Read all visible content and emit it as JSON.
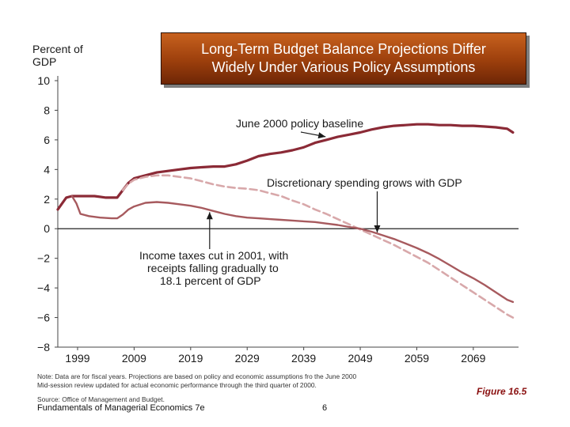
{
  "title_lines": [
    "Long-Term Budget Balance Projections Differ",
    "Widely Under Various Policy Assumptions"
  ],
  "note_lines": [
    "Note: Data are for fiscal years. Projections are based on policy and economic assumptions fro the June 2000",
    "Mid-session review updated for actual economic performance through the third quarter of 2000."
  ],
  "source": "Source: Office of Management and Budget.",
  "footer": {
    "book": "Fundamentals of Managerial Economics 7e",
    "page": "6"
  },
  "figure_label": "Figure 16.5",
  "colors": {
    "baseline": "#8b2a36",
    "spending": "#d8a8aa",
    "tax": "#a75a5e",
    "banner": "#9c3f0c"
  },
  "chart_data": {
    "type": "line",
    "title": "Long-Term Budget Balance Projections Differ Widely Under Various Policy Assumptions",
    "ylabel": "Percent of GDP",
    "xlabel": "",
    "xlim": [
      1995.5,
      2077
    ],
    "ylim": [
      -8,
      10
    ],
    "x_ticks": [
      1999,
      2009,
      2019,
      2029,
      2039,
      2049,
      2059,
      2069
    ],
    "y_ticks": [
      -8,
      -6,
      -4,
      -2,
      0,
      2,
      4,
      6,
      8,
      10
    ],
    "y_tick_labels": [
      "−8",
      "−6",
      "−4",
      "−2",
      "0",
      "2",
      "4",
      "6",
      "8",
      "10"
    ],
    "series": [
      {
        "name": "June 2000 policy baseline",
        "x": [
          1995.5,
          1997,
          1998,
          2000,
          2002,
          2004,
          2006,
          2007,
          2008,
          2009,
          2011,
          2013,
          2015,
          2017,
          2019,
          2021,
          2023,
          2025,
          2027,
          2029,
          2031,
          2033,
          2035,
          2037,
          2039,
          2041,
          2043,
          2045,
          2047,
          2049,
          2051,
          2053,
          2055,
          2057,
          2059,
          2061,
          2063,
          2065,
          2067,
          2069,
          2071,
          2073,
          2075,
          2076
        ],
        "values": [
          1.3,
          2.1,
          2.2,
          2.2,
          2.2,
          2.1,
          2.1,
          2.6,
          3.1,
          3.4,
          3.6,
          3.8,
          3.9,
          4.0,
          4.1,
          4.15,
          4.2,
          4.2,
          4.35,
          4.6,
          4.9,
          5.05,
          5.15,
          5.3,
          5.5,
          5.8,
          6.0,
          6.2,
          6.35,
          6.5,
          6.7,
          6.85,
          6.95,
          7.0,
          7.05,
          7.05,
          7.0,
          7.0,
          6.95,
          6.95,
          6.9,
          6.85,
          6.75,
          6.5
        ]
      },
      {
        "name": "Discretionary spending grows with GDP",
        "x": [
          2007,
          2008,
          2009,
          2011,
          2013,
          2015,
          2017,
          2019,
          2021,
          2023,
          2025,
          2027,
          2029,
          2031,
          2033,
          2035,
          2037,
          2039,
          2041,
          2043,
          2045,
          2047,
          2049,
          2051,
          2053,
          2055,
          2057,
          2059,
          2061,
          2063,
          2065,
          2067,
          2069,
          2071,
          2073,
          2075,
          2076
        ],
        "values": [
          2.6,
          3.05,
          3.3,
          3.5,
          3.6,
          3.6,
          3.5,
          3.4,
          3.2,
          3.0,
          2.85,
          2.75,
          2.7,
          2.6,
          2.4,
          2.2,
          1.9,
          1.65,
          1.3,
          1.0,
          0.65,
          0.3,
          -0.05,
          -0.4,
          -0.75,
          -1.1,
          -1.5,
          -1.9,
          -2.3,
          -2.8,
          -3.3,
          -3.8,
          -4.3,
          -4.8,
          -5.3,
          -5.8,
          -6.0
        ]
      },
      {
        "name": "Income taxes cut in 2001, with receipts falling gradually to 18.1 percent of GDP",
        "x": [
          1998,
          1998.8,
          1999.5,
          2001,
          2003,
          2005,
          2006,
          2007,
          2008,
          2009,
          2011,
          2013,
          2015,
          2017,
          2019,
          2021,
          2023,
          2025,
          2027,
          2029,
          2031,
          2033,
          2035,
          2037,
          2039,
          2041,
          2043,
          2045,
          2047,
          2049,
          2051,
          2053,
          2055,
          2057,
          2059,
          2061,
          2063,
          2065,
          2067,
          2069,
          2071,
          2073,
          2075,
          2076
        ],
        "values": [
          2.2,
          1.7,
          1.0,
          0.85,
          0.75,
          0.7,
          0.7,
          0.95,
          1.3,
          1.5,
          1.75,
          1.8,
          1.75,
          1.65,
          1.55,
          1.4,
          1.2,
          1.0,
          0.85,
          0.75,
          0.7,
          0.65,
          0.6,
          0.55,
          0.5,
          0.45,
          0.35,
          0.25,
          0.12,
          0.0,
          -0.2,
          -0.45,
          -0.7,
          -1.0,
          -1.3,
          -1.65,
          -2.05,
          -2.5,
          -2.95,
          -3.35,
          -3.8,
          -4.3,
          -4.8,
          -4.95
        ]
      }
    ],
    "annotations": [
      {
        "text": "June 2000 policy baseline",
        "series": 0,
        "x": 2043
      },
      {
        "text": "Discretionary spending grows with GDP",
        "series": 1,
        "x": 2052
      },
      {
        "text": [
          "Income taxes cut in 2001, with",
          "receipts falling gradually to",
          "18.1 percent of GDP"
        ],
        "series": 2,
        "x": 2029
      }
    ],
    "y_title_lines": [
      "Percent of",
      "GDP"
    ]
  }
}
